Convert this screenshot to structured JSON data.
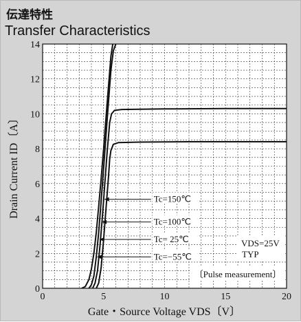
{
  "header": {
    "title_jp": "伝達特性",
    "title_en": "Transfer Characteristics"
  },
  "colors": {
    "panel_background": "#d4d4d4",
    "plot_background": "#ffffff",
    "curve": "#111111",
    "grid": "#333333"
  },
  "chart_data": {
    "type": "line",
    "title": "Transfer Characteristics",
    "xlabel": "Gate・Source Voltage  VDS〔V〕",
    "ylabel": "Drain Current  ID〔A〕",
    "xlim": [
      0,
      20
    ],
    "ylim": [
      0,
      14
    ],
    "x_ticks": [
      0,
      5,
      10,
      15,
      20
    ],
    "y_ticks": [
      0,
      2,
      4,
      6,
      8,
      10,
      12,
      14
    ],
    "grid": true,
    "grid_style": "dashed",
    "series": [
      {
        "name": "Tc=150℃",
        "points": [
          [
            4.4,
            0
          ],
          [
            4.6,
            0.3
          ],
          [
            4.8,
            1.2
          ],
          [
            5.0,
            2.8
          ],
          [
            5.2,
            4.6
          ],
          [
            5.4,
            6.4
          ],
          [
            5.5,
            7.4
          ],
          [
            5.6,
            7.9
          ],
          [
            5.8,
            8.25
          ],
          [
            6.2,
            8.35
          ],
          [
            8,
            8.38
          ],
          [
            12,
            8.4
          ],
          [
            16,
            8.4
          ],
          [
            20,
            8.4
          ]
        ]
      },
      {
        "name": "Tc=100℃",
        "points": [
          [
            4.1,
            0
          ],
          [
            4.3,
            0.3
          ],
          [
            4.5,
            1.0
          ],
          [
            4.7,
            2.4
          ],
          [
            4.9,
            4.1
          ],
          [
            5.1,
            6.0
          ],
          [
            5.3,
            7.9
          ],
          [
            5.5,
            9.5
          ],
          [
            5.65,
            10.0
          ],
          [
            5.9,
            10.2
          ],
          [
            6.5,
            10.25
          ],
          [
            10,
            10.28
          ],
          [
            15,
            10.3
          ],
          [
            20,
            10.3
          ]
        ]
      },
      {
        "name": "Tc= 25℃",
        "points": [
          [
            3.8,
            0
          ],
          [
            4.0,
            0.2
          ],
          [
            4.2,
            0.7
          ],
          [
            4.4,
            1.8
          ],
          [
            4.6,
            3.2
          ],
          [
            4.8,
            5.0
          ],
          [
            5.0,
            6.9
          ],
          [
            5.2,
            8.8
          ],
          [
            5.4,
            10.7
          ],
          [
            5.6,
            12.5
          ],
          [
            5.8,
            13.6
          ],
          [
            6.0,
            14.0
          ]
        ]
      },
      {
        "name": "Tc=−55℃",
        "points": [
          [
            3.2,
            0
          ],
          [
            3.5,
            0.1
          ],
          [
            3.8,
            0.5
          ],
          [
            4.0,
            1.1
          ],
          [
            4.2,
            2.0
          ],
          [
            4.4,
            3.2
          ],
          [
            4.6,
            4.7
          ],
          [
            4.8,
            6.3
          ],
          [
            5.0,
            8.0
          ],
          [
            5.2,
            9.8
          ],
          [
            5.4,
            11.6
          ],
          [
            5.6,
            13.3
          ],
          [
            5.75,
            14.0
          ]
        ]
      }
    ],
    "annotations": {
      "vds": "VDS=25V",
      "typ": "TYP",
      "pulse": "〔Pulse measurement〕"
    }
  }
}
